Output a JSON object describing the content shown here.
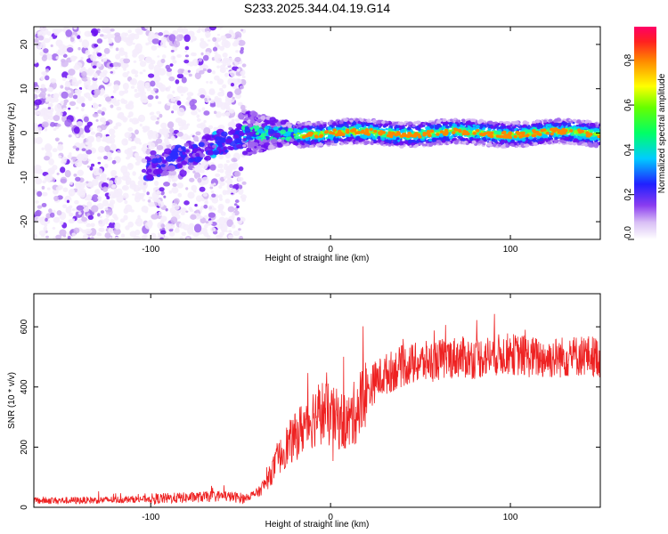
{
  "figure_title": "S233.2025.344.04.19.G14",
  "colors": {
    "snr_line": "#ee2222",
    "frame": "#000000",
    "background": "#ffffff"
  },
  "chart_data": [
    {
      "type": "heatmap",
      "title": "",
      "xlabel": "Height of straight line (km)",
      "ylabel": "Frequency (Hz)",
      "xlim": [
        -165,
        150
      ],
      "ylim": [
        -24,
        24
      ],
      "xticks": [
        -100,
        0,
        100
      ],
      "xtick_labels": [
        "-100",
        "0",
        "100"
      ],
      "yticks": [
        -20,
        -10,
        0,
        10,
        20
      ],
      "ytick_labels": [
        "-20",
        "-10",
        "0",
        "10",
        "20"
      ],
      "colorbar": {
        "label": "Normalized spectral amplitude",
        "range": [
          0,
          0.95
        ],
        "ticks": [
          0.0,
          0.2,
          0.4,
          0.6,
          0.8
        ],
        "tick_labels": [
          "0.0",
          "0.2",
          "0.4",
          "0.6",
          "0.8"
        ],
        "colormap": "rainbow"
      },
      "description_points": {
        "noise_region_x": [
          -165,
          -48
        ],
        "transition_x": [
          -48,
          -20
        ],
        "signal_region_x": [
          -20,
          150
        ],
        "signal_frequency_hz": 0
      }
    },
    {
      "type": "line",
      "title": "",
      "xlabel": "Height of straight line (km)",
      "ylabel": "SNR (10 * v/v)",
      "xlim": [
        -165,
        150
      ],
      "ylim": [
        0,
        710
      ],
      "xticks": [
        -100,
        0,
        100
      ],
      "xtick_labels": [
        "-100",
        "0",
        "100"
      ],
      "yticks": [
        0,
        200,
        400,
        600
      ],
      "ytick_labels": [
        "0",
        "200",
        "400",
        "600"
      ],
      "series": [
        {
          "name": "SNR",
          "x": [
            -165,
            -140,
            -120,
            -100,
            -80,
            -60,
            -48,
            -40,
            -35,
            -30,
            -25,
            -20,
            -15,
            -10,
            -5,
            0,
            5,
            10,
            15,
            20,
            25,
            30,
            40,
            50,
            60,
            70,
            80,
            90,
            100,
            110,
            120,
            130,
            140,
            150
          ],
          "y": [
            22,
            23,
            25,
            28,
            32,
            38,
            30,
            50,
            90,
            150,
            200,
            230,
            270,
            300,
            320,
            300,
            290,
            280,
            330,
            380,
            420,
            440,
            470,
            480,
            490,
            500,
            495,
            505,
            510,
            500,
            495,
            500,
            505,
            500
          ]
        }
      ]
    }
  ]
}
